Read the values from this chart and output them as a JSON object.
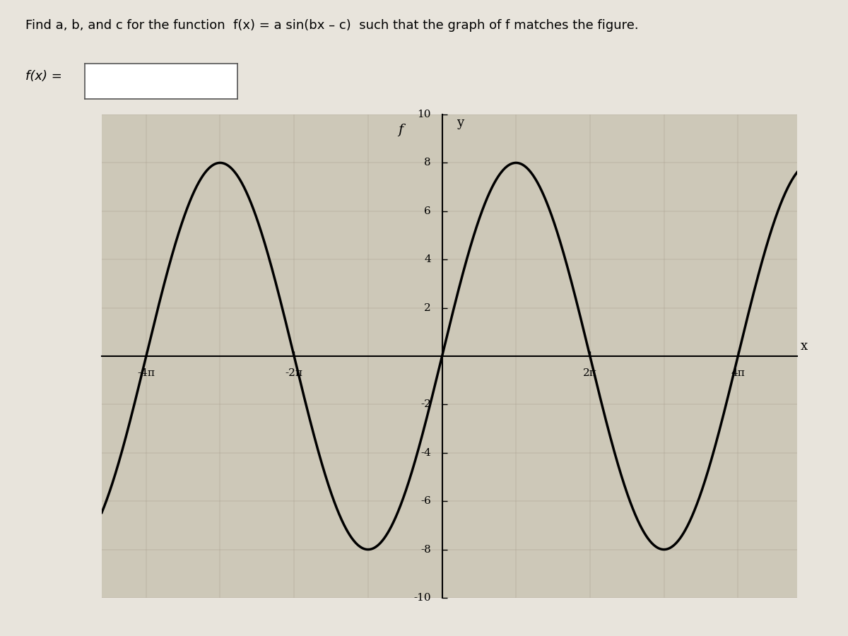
{
  "a": 8,
  "b": 0.5,
  "c": 0,
  "x_min": -4.6,
  "x_max": 4.8,
  "y_min": -10,
  "y_max": 10,
  "x_ticks": [
    -4,
    -2,
    2,
    4
  ],
  "x_tick_labels": [
    "-4π",
    "-2π",
    "2π",
    "4π"
  ],
  "y_ticks": [
    -10,
    -8,
    -6,
    -4,
    -2,
    2,
    4,
    6,
    8,
    10
  ],
  "y_tick_labels": [
    "-10",
    "-8",
    "-6",
    "-4",
    "-2",
    "2",
    "4",
    "6",
    "8",
    "10"
  ],
  "curve_color": "#000000",
  "curve_linewidth": 2.5,
  "axis_color": "#000000",
  "page_bg_color": "#e8e4dc",
  "plot_bg_color": "#cdc8b8",
  "font_color": "#000000",
  "xlabel": "x",
  "ylabel": "y",
  "f_label": "f",
  "figsize": [
    12,
    9
  ],
  "dpi": 100
}
